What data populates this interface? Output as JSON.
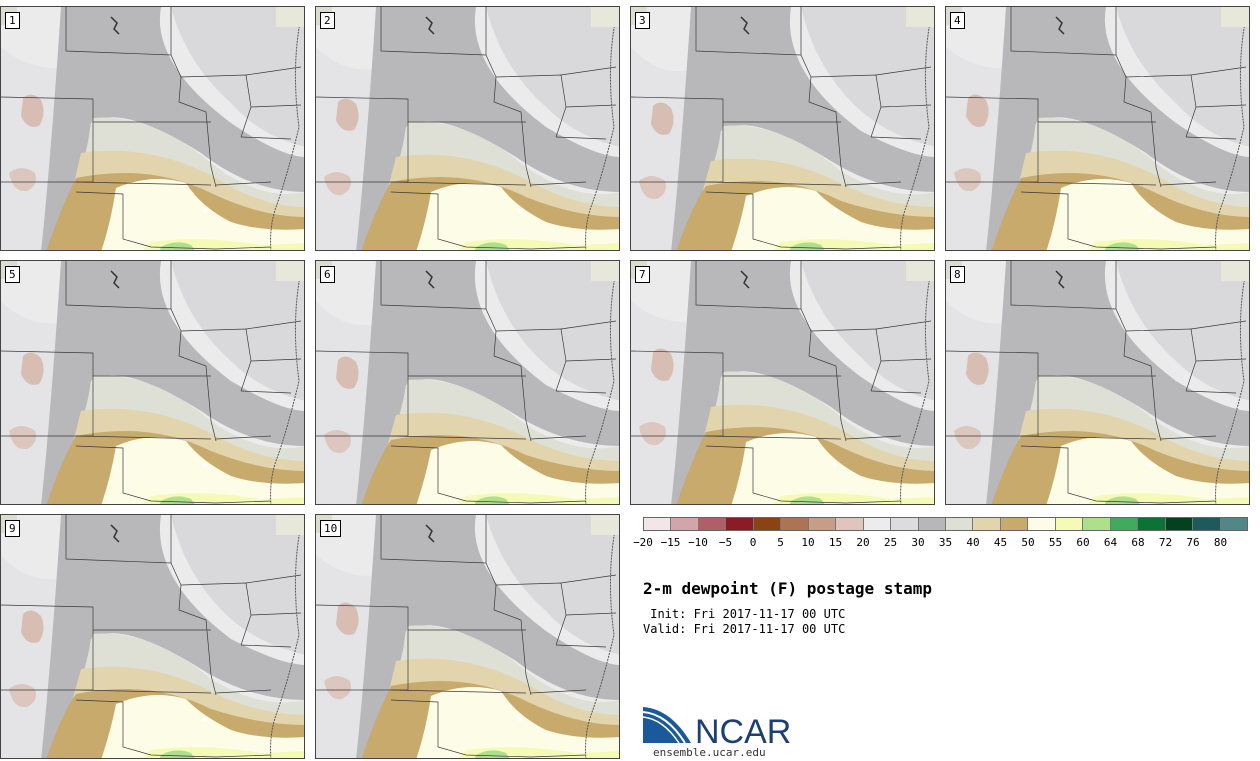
{
  "panels": [
    {
      "label": "1"
    },
    {
      "label": "2"
    },
    {
      "label": "3"
    },
    {
      "label": "4"
    },
    {
      "label": "5"
    },
    {
      "label": "6"
    },
    {
      "label": "7"
    },
    {
      "label": "8"
    },
    {
      "label": "9"
    },
    {
      "label": "10"
    }
  ],
  "colorbar": {
    "colors": [
      "#f3e6e8",
      "#d4a4ab",
      "#b05e67",
      "#8c1b27",
      "#8a4413",
      "#ad7453",
      "#c69d86",
      "#e0c5bd",
      "#ececee",
      "#dcdcde",
      "#b7b7b9",
      "#dedfd5",
      "#e2d5ae",
      "#c8aa6d",
      "#fdfde7",
      "#f5fbb7",
      "#aee08c",
      "#41ab5d",
      "#0b7336",
      "#04421f",
      "#1e5a5d",
      "#528789"
    ],
    "ticks": [
      "−20",
      "−15",
      "−10",
      "−5",
      "0",
      "5",
      "10",
      "15",
      "20",
      "25",
      "30",
      "35",
      "40",
      "45",
      "50",
      "55",
      "60",
      "64",
      "68",
      "72",
      "76",
      "80"
    ]
  },
  "title": "2-m dewpoint (F) postage stamp",
  "init_text": " Init: Fri 2017-11-17 00 UTC",
  "valid_text": "Valid: Fri 2017-11-17 00 UTC",
  "logo_text": "NCAR",
  "url_text": "ensemble.ucar.edu",
  "logo_colors": {
    "blue": "#1a5a9b",
    "text": "#1d3f75"
  }
}
